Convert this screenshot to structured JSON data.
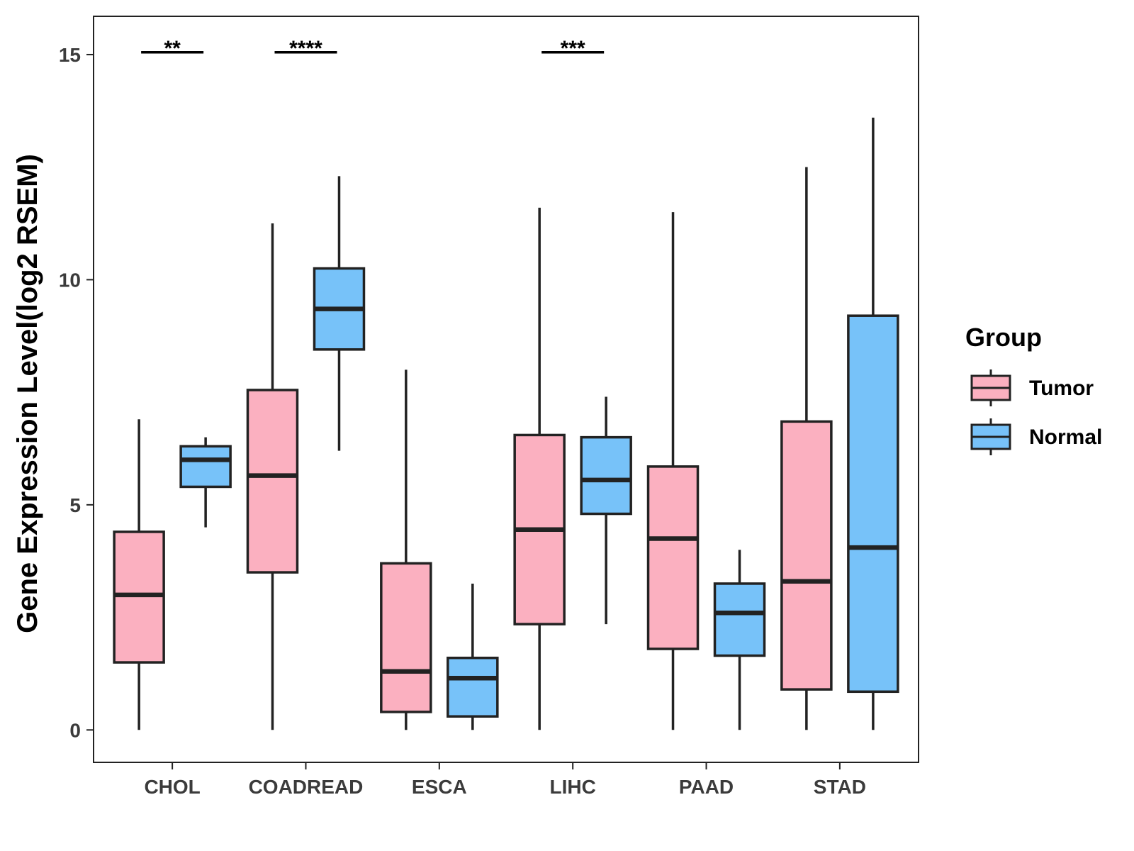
{
  "chart_data": {
    "type": "boxplot",
    "title": "",
    "xlabel": "",
    "ylabel": "Gene Expression Level(log2 RSEM)",
    "ylim": [
      -0.72,
      15.85
    ],
    "yticks": [
      0,
      5,
      10,
      15
    ],
    "categories": [
      "CHOL",
      "COADREAD",
      "ESCA",
      "LIHC",
      "PAAD",
      "STAD"
    ],
    "legend": {
      "title": "Group",
      "position": "right"
    },
    "series": [
      {
        "name": "Tumor",
        "color": "#fbb0c0",
        "boxes": [
          {
            "min": 0.0,
            "q1": 1.5,
            "median": 3.0,
            "q3": 4.4,
            "max": 6.9
          },
          {
            "min": 0.0,
            "q1": 3.5,
            "median": 5.65,
            "q3": 7.55,
            "max": 11.25
          },
          {
            "min": 0.0,
            "q1": 0.4,
            "median": 1.3,
            "q3": 3.7,
            "max": 8.0
          },
          {
            "min": 0.0,
            "q1": 2.35,
            "median": 4.45,
            "q3": 6.55,
            "max": 11.6
          },
          {
            "min": 0.0,
            "q1": 1.8,
            "median": 4.25,
            "q3": 5.85,
            "max": 11.5
          },
          {
            "min": 0.0,
            "q1": 0.9,
            "median": 3.3,
            "q3": 6.85,
            "max": 12.5
          }
        ]
      },
      {
        "name": "Normal",
        "color": "#77c2f9",
        "boxes": [
          {
            "min": 4.5,
            "q1": 5.4,
            "median": 6.0,
            "q3": 6.3,
            "max": 6.5
          },
          {
            "min": 6.2,
            "q1": 8.45,
            "median": 9.35,
            "q3": 10.25,
            "max": 12.3
          },
          {
            "min": 0.0,
            "q1": 0.3,
            "median": 1.15,
            "q3": 1.6,
            "max": 3.25
          },
          {
            "min": 2.35,
            "q1": 4.8,
            "median": 5.55,
            "q3": 6.5,
            "max": 7.4
          },
          {
            "min": 0.0,
            "q1": 1.65,
            "median": 2.6,
            "q3": 3.25,
            "max": 4.0
          },
          {
            "min": 0.0,
            "q1": 0.85,
            "median": 4.05,
            "q3": 9.2,
            "max": 13.6
          }
        ]
      }
    ],
    "significance": [
      {
        "category": "CHOL",
        "y": 15.05,
        "label": "**"
      },
      {
        "category": "COADREAD",
        "y": 15.05,
        "label": "****"
      },
      {
        "category": "LIHC",
        "y": 15.05,
        "label": "***"
      }
    ]
  }
}
